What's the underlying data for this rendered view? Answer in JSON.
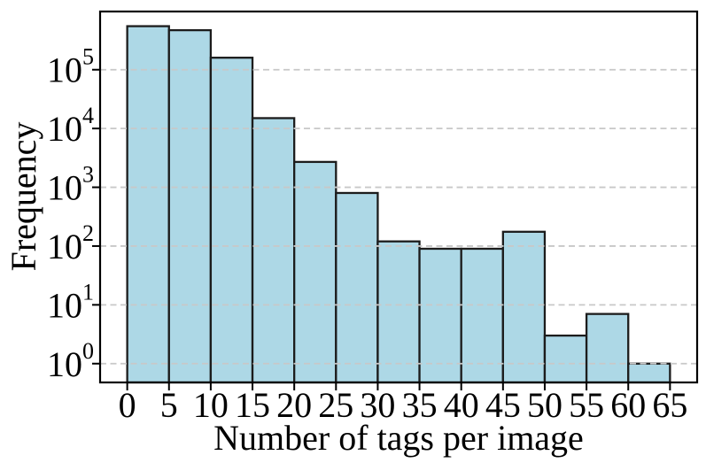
{
  "chart_data": {
    "type": "bar",
    "subtype": "histogram",
    "title": "",
    "xlabel": "Number of tags per image",
    "ylabel": "Frequency",
    "yscale": "log",
    "bin_edges": [
      0,
      5,
      10,
      15,
      20,
      25,
      30,
      35,
      40,
      45,
      50,
      55,
      60,
      65
    ],
    "counts": [
      550000,
      470000,
      160000,
      15000,
      2700,
      800,
      120,
      90,
      90,
      175,
      3,
      7,
      1
    ],
    "xticks": [
      0,
      5,
      10,
      15,
      20,
      25,
      30,
      35,
      40,
      45,
      50,
      55,
      60,
      65
    ],
    "ytick_exponents": [
      0,
      1,
      2,
      3,
      4,
      5
    ],
    "ytick_base": "10",
    "xlim": [
      -3.25,
      68.25
    ],
    "ylim_log10": [
      -0.32,
      5.99
    ],
    "grid": {
      "axis": "y",
      "style": "dashed",
      "above_bars": true
    },
    "legend": null,
    "colors": {
      "bar_fill": "#add8e6",
      "bar_edge": "#1c1c1c",
      "gridline": "#c8c8c8",
      "spine": "#000000",
      "text": "#000000",
      "background": "#ffffff"
    }
  }
}
